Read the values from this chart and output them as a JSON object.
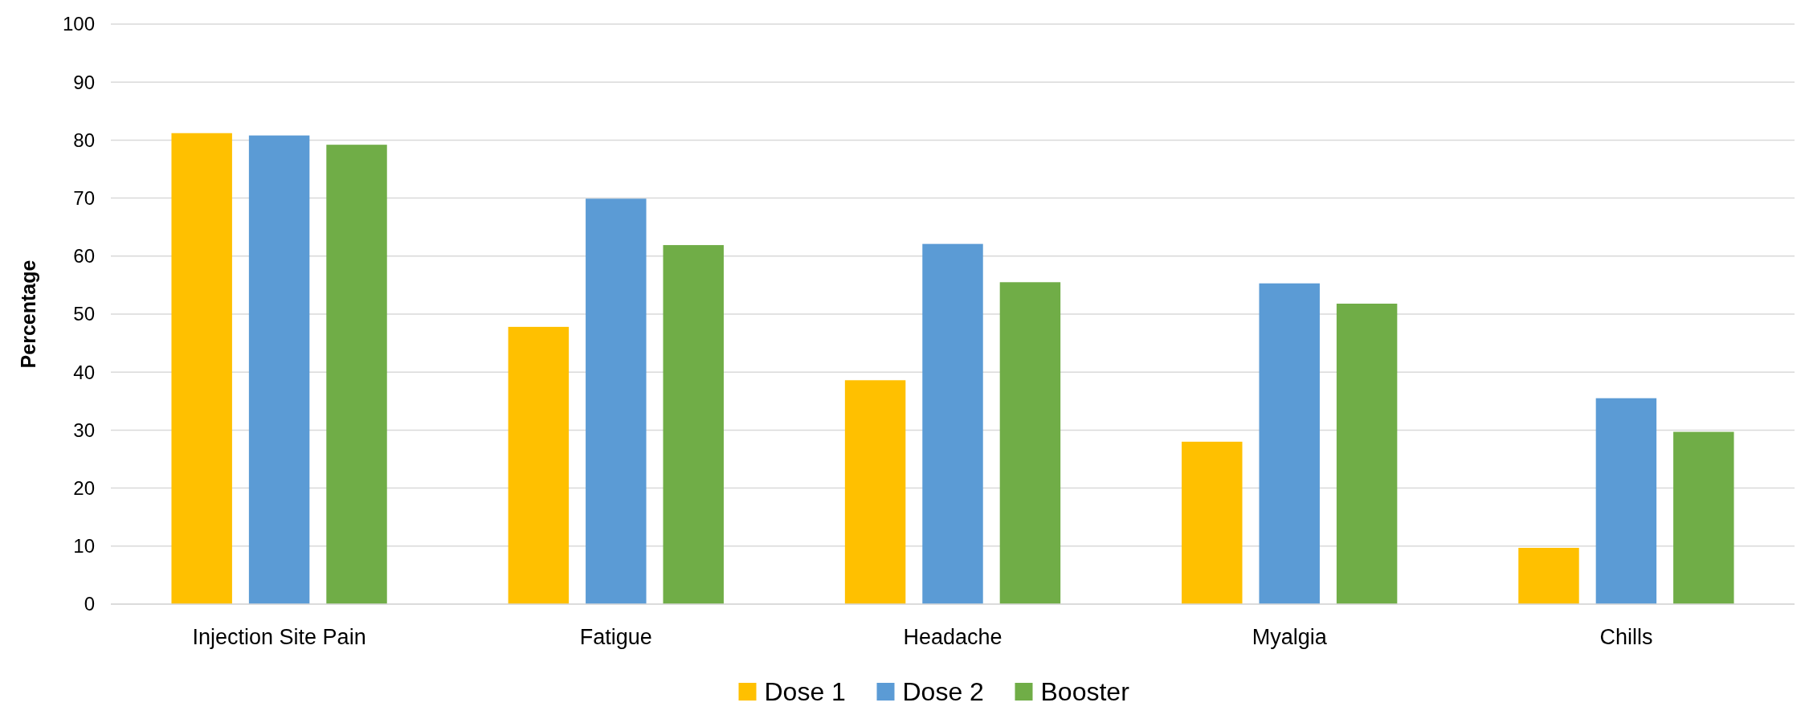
{
  "chart_data": {
    "type": "bar",
    "ylabel": "Percentage",
    "categories": [
      "Injection Site Pain",
      "Fatigue",
      "Headache",
      "Myalgia",
      "Chills"
    ],
    "series": [
      {
        "name": "Dose 1",
        "color": "#ffc000",
        "values": [
          81.2,
          47.8,
          38.6,
          28.0,
          9.7
        ]
      },
      {
        "name": "Dose 2",
        "color": "#5b9bd5",
        "values": [
          80.8,
          69.9,
          62.1,
          55.3,
          35.5
        ]
      },
      {
        "name": "Booster",
        "color": "#70ad47",
        "values": [
          79.2,
          61.9,
          55.5,
          51.8,
          29.7
        ]
      }
    ],
    "ylim": [
      0,
      100
    ],
    "yticks": [
      0,
      10,
      20,
      30,
      40,
      50,
      60,
      70,
      80,
      90,
      100
    ],
    "grid": "y",
    "legend": "bottom"
  }
}
